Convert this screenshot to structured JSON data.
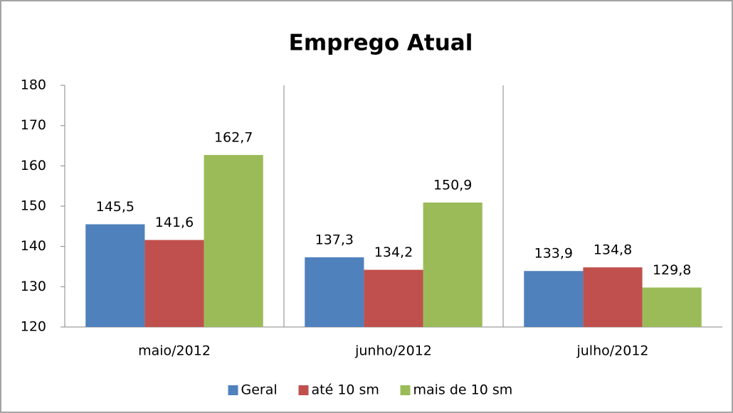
{
  "chart_data": {
    "type": "bar",
    "title": "Emprego Atual",
    "categories": [
      "maio/2012",
      "junho/2012",
      "julho/2012"
    ],
    "series": [
      {
        "name": "Geral",
        "color": "#4f81bd",
        "values": [
          145.5,
          137.3,
          133.9
        ],
        "value_labels": [
          "145,5",
          "137,3",
          "133,9"
        ]
      },
      {
        "name": "até 10 sm",
        "color": "#c0504d",
        "values": [
          141.6,
          134.2,
          134.8
        ],
        "value_labels": [
          "141,6",
          "134,2",
          "134,8"
        ]
      },
      {
        "name": "mais de 10 sm",
        "color": "#9bbb59",
        "values": [
          162.7,
          150.9,
          129.8
        ],
        "value_labels": [
          "162,7",
          "150,9",
          "129,8"
        ]
      }
    ],
    "ylim": [
      120,
      180
    ],
    "yticks": [
      120,
      130,
      140,
      150,
      160,
      170,
      180
    ],
    "legend": "bottom"
  }
}
